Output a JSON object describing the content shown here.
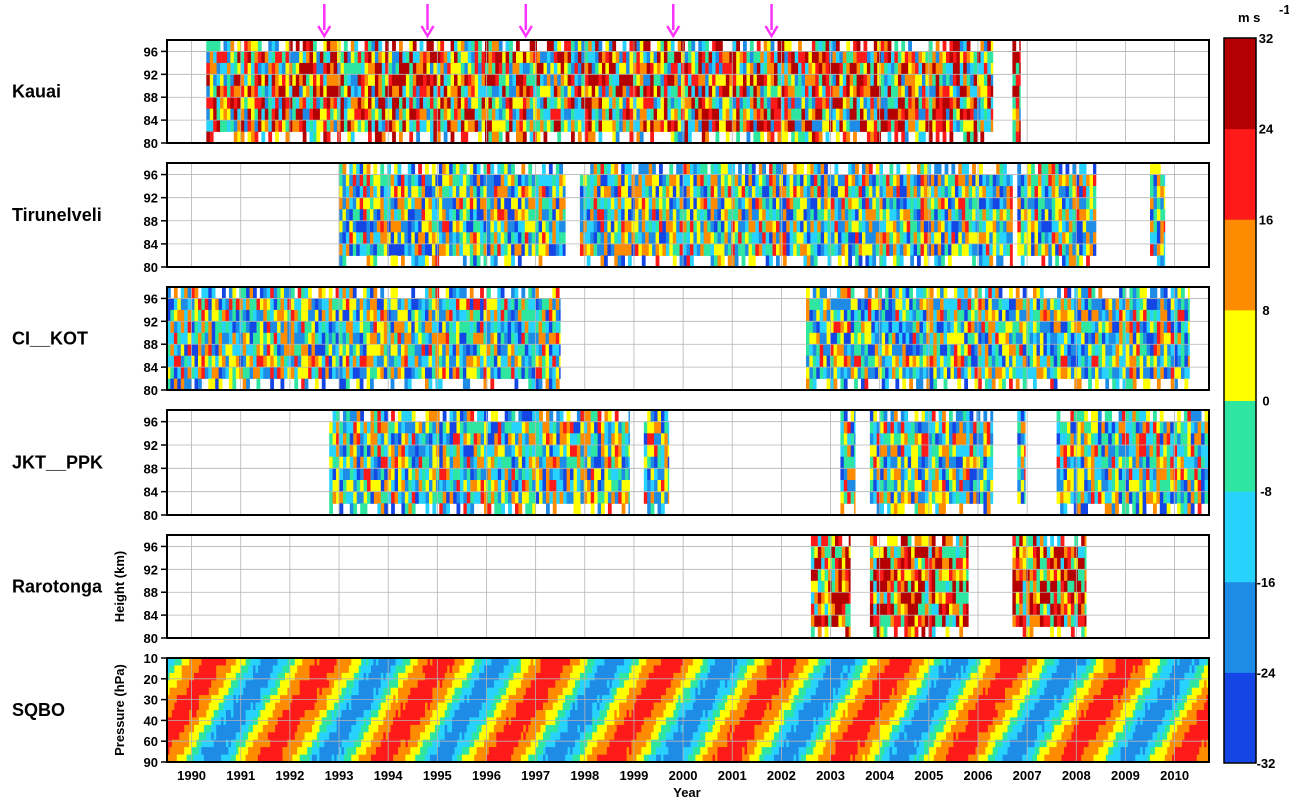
{
  "chart_data": {
    "type": "heatmap",
    "xlabel": "Year",
    "x_tick_labels": [
      "1990",
      "1991",
      "1992",
      "1993",
      "1994",
      "1995",
      "1996",
      "1997",
      "1998",
      "1999",
      "2000",
      "2001",
      "2002",
      "2003",
      "2004",
      "2005",
      "2006",
      "2007",
      "2008",
      "2009",
      "2010"
    ],
    "x_range": [
      1989.5,
      2010.7
    ],
    "panels": [
      {
        "name": "Kauai",
        "ylabel": "",
        "yticks": [
          "80",
          "84",
          "88",
          "92",
          "96"
        ],
        "ylim": [
          80,
          98
        ],
        "coverage": [
          [
            1990.3,
            2006.3
          ],
          [
            2006.7,
            2006.85
          ]
        ],
        "style": "mesosphere",
        "seed": 11
      },
      {
        "name": "Tirunelveli",
        "ylabel": "",
        "yticks": [
          "80",
          "84",
          "88",
          "92",
          "96"
        ],
        "ylim": [
          80,
          98
        ],
        "coverage": [
          [
            1993.0,
            1997.6
          ],
          [
            1997.9,
            2006.7
          ],
          [
            2006.8,
            2008.4
          ],
          [
            2009.5,
            2009.8
          ]
        ],
        "style": "mesosphere_cool",
        "seed": 23
      },
      {
        "name": "CI__KOT",
        "ylabel": "",
        "yticks": [
          "80",
          "84",
          "88",
          "92",
          "96"
        ],
        "ylim": [
          80,
          98
        ],
        "coverage": [
          [
            1989.5,
            1997.5
          ],
          [
            2002.5,
            2010.3
          ]
        ],
        "style": "mesosphere_cool",
        "seed": 37
      },
      {
        "name": "JKT__PPK",
        "ylabel": "",
        "yticks": [
          "80",
          "84",
          "88",
          "92",
          "96"
        ],
        "ylim": [
          80,
          98
        ],
        "coverage": [
          [
            1992.8,
            1998.9
          ],
          [
            1999.2,
            1999.7
          ],
          [
            2003.2,
            2003.5
          ],
          [
            2003.8,
            2006.3
          ],
          [
            2006.8,
            2006.95
          ],
          [
            2007.6,
            2010.7
          ]
        ],
        "style": "mesosphere_cool",
        "seed": 51
      },
      {
        "name": "Rarotonga",
        "ylabel": "Height (km)",
        "yticks": [
          "80",
          "84",
          "88",
          "92",
          "96"
        ],
        "ylim": [
          80,
          98
        ],
        "coverage": [
          [
            2002.6,
            2003.4
          ],
          [
            2003.8,
            2005.8
          ],
          [
            2006.7,
            2008.2
          ]
        ],
        "style": "mesosphere_warm",
        "seed": 67
      },
      {
        "name": "SQBO",
        "ylabel": "Pressure (hPa)",
        "yticks": [
          "10",
          "20",
          "30",
          "40",
          "60",
          "90"
        ],
        "ylim": [
          10,
          90
        ],
        "coverage": [
          [
            1989.5,
            2010.7
          ]
        ],
        "style": "qbo",
        "seed": 79
      }
    ],
    "qbo_period_years": 2.33,
    "arrows_at_years": [
      1992.7,
      1994.8,
      1996.8,
      1999.8,
      2001.8
    ],
    "arrow_color": "#ff33ff",
    "colorbar": {
      "unit_main": "m s",
      "unit_sup": "-1",
      "tick_labels": [
        "32",
        "24",
        "16",
        "8",
        "0",
        "-8",
        "-16",
        "-24",
        "-32"
      ],
      "levels": [
        -32,
        -24,
        -16,
        -8,
        0,
        8,
        16,
        24,
        32
      ],
      "colors": [
        "#1446e6",
        "#1e8ce6",
        "#28d2ff",
        "#2ee6a0",
        "#ffff00",
        "#ff8c00",
        "#ff1a1a",
        "#b40000"
      ]
    }
  }
}
